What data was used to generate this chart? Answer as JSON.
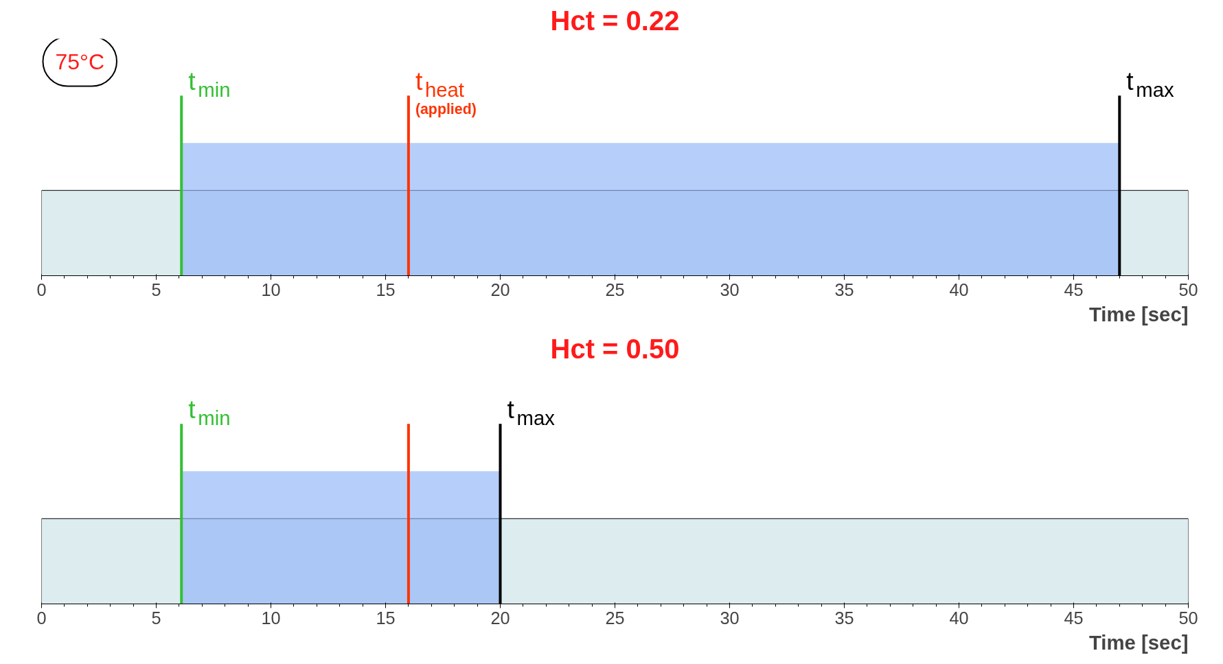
{
  "chart_data": [
    {
      "type": "bar",
      "orientation": "horizontal",
      "title": "Hct = 0.22",
      "xlabel": "Time [sec]",
      "xlim": [
        0,
        50
      ],
      "xticks": [
        0,
        5,
        10,
        15,
        20,
        25,
        30,
        35,
        40,
        45,
        50
      ],
      "tick_labels": "x",
      "categories": [
        null
      ],
      "base": [
        6.1
      ],
      "values": [
        40.9
      ],
      "color": "#8fb4f7",
      "bands": [
        {
          "axis": "x",
          "from": 0,
          "to": 50,
          "color": "#dcecef"
        }
      ],
      "ref_lines": [
        {
          "axis": "x",
          "value": 6.1,
          "label": "t$_{min}$",
          "color": "#33c033"
        },
        {
          "axis": "x",
          "value": 16,
          "label": "t$_{heat}$",
          "color": "#ff3300"
        },
        {
          "axis": "x",
          "value": 47,
          "label": "t$_{max}$",
          "color": "#000000"
        }
      ],
      "annotations": [
        "75°C",
        {
          "text": "(applied)",
          "x": 16
        }
      ]
    },
    {
      "type": "bar",
      "orientation": "horizontal",
      "title": "Hct = 0.50",
      "xlabel": "Time [sec]",
      "xlim": [
        0,
        50
      ],
      "xticks": [
        0,
        5,
        10,
        15,
        20,
        25,
        30,
        35,
        40,
        45,
        50
      ],
      "tick_labels": "x",
      "categories": [
        null
      ],
      "base": [
        6.1
      ],
      "values": [
        13.9
      ],
      "color": "#8fb4f7",
      "bands": [
        {
          "axis": "x",
          "from": 0,
          "to": 50,
          "color": "#dcecef"
        }
      ],
      "ref_lines": [
        {
          "axis": "x",
          "value": 6.1,
          "label": "t$_{min}$",
          "color": "#33c033"
        },
        {
          "axis": "x",
          "value": 16,
          "color": "#ff3300"
        },
        {
          "axis": "x",
          "value": 20,
          "label": "t$_{max}$",
          "color": "#000000"
        }
      ]
    }
  ]
}
